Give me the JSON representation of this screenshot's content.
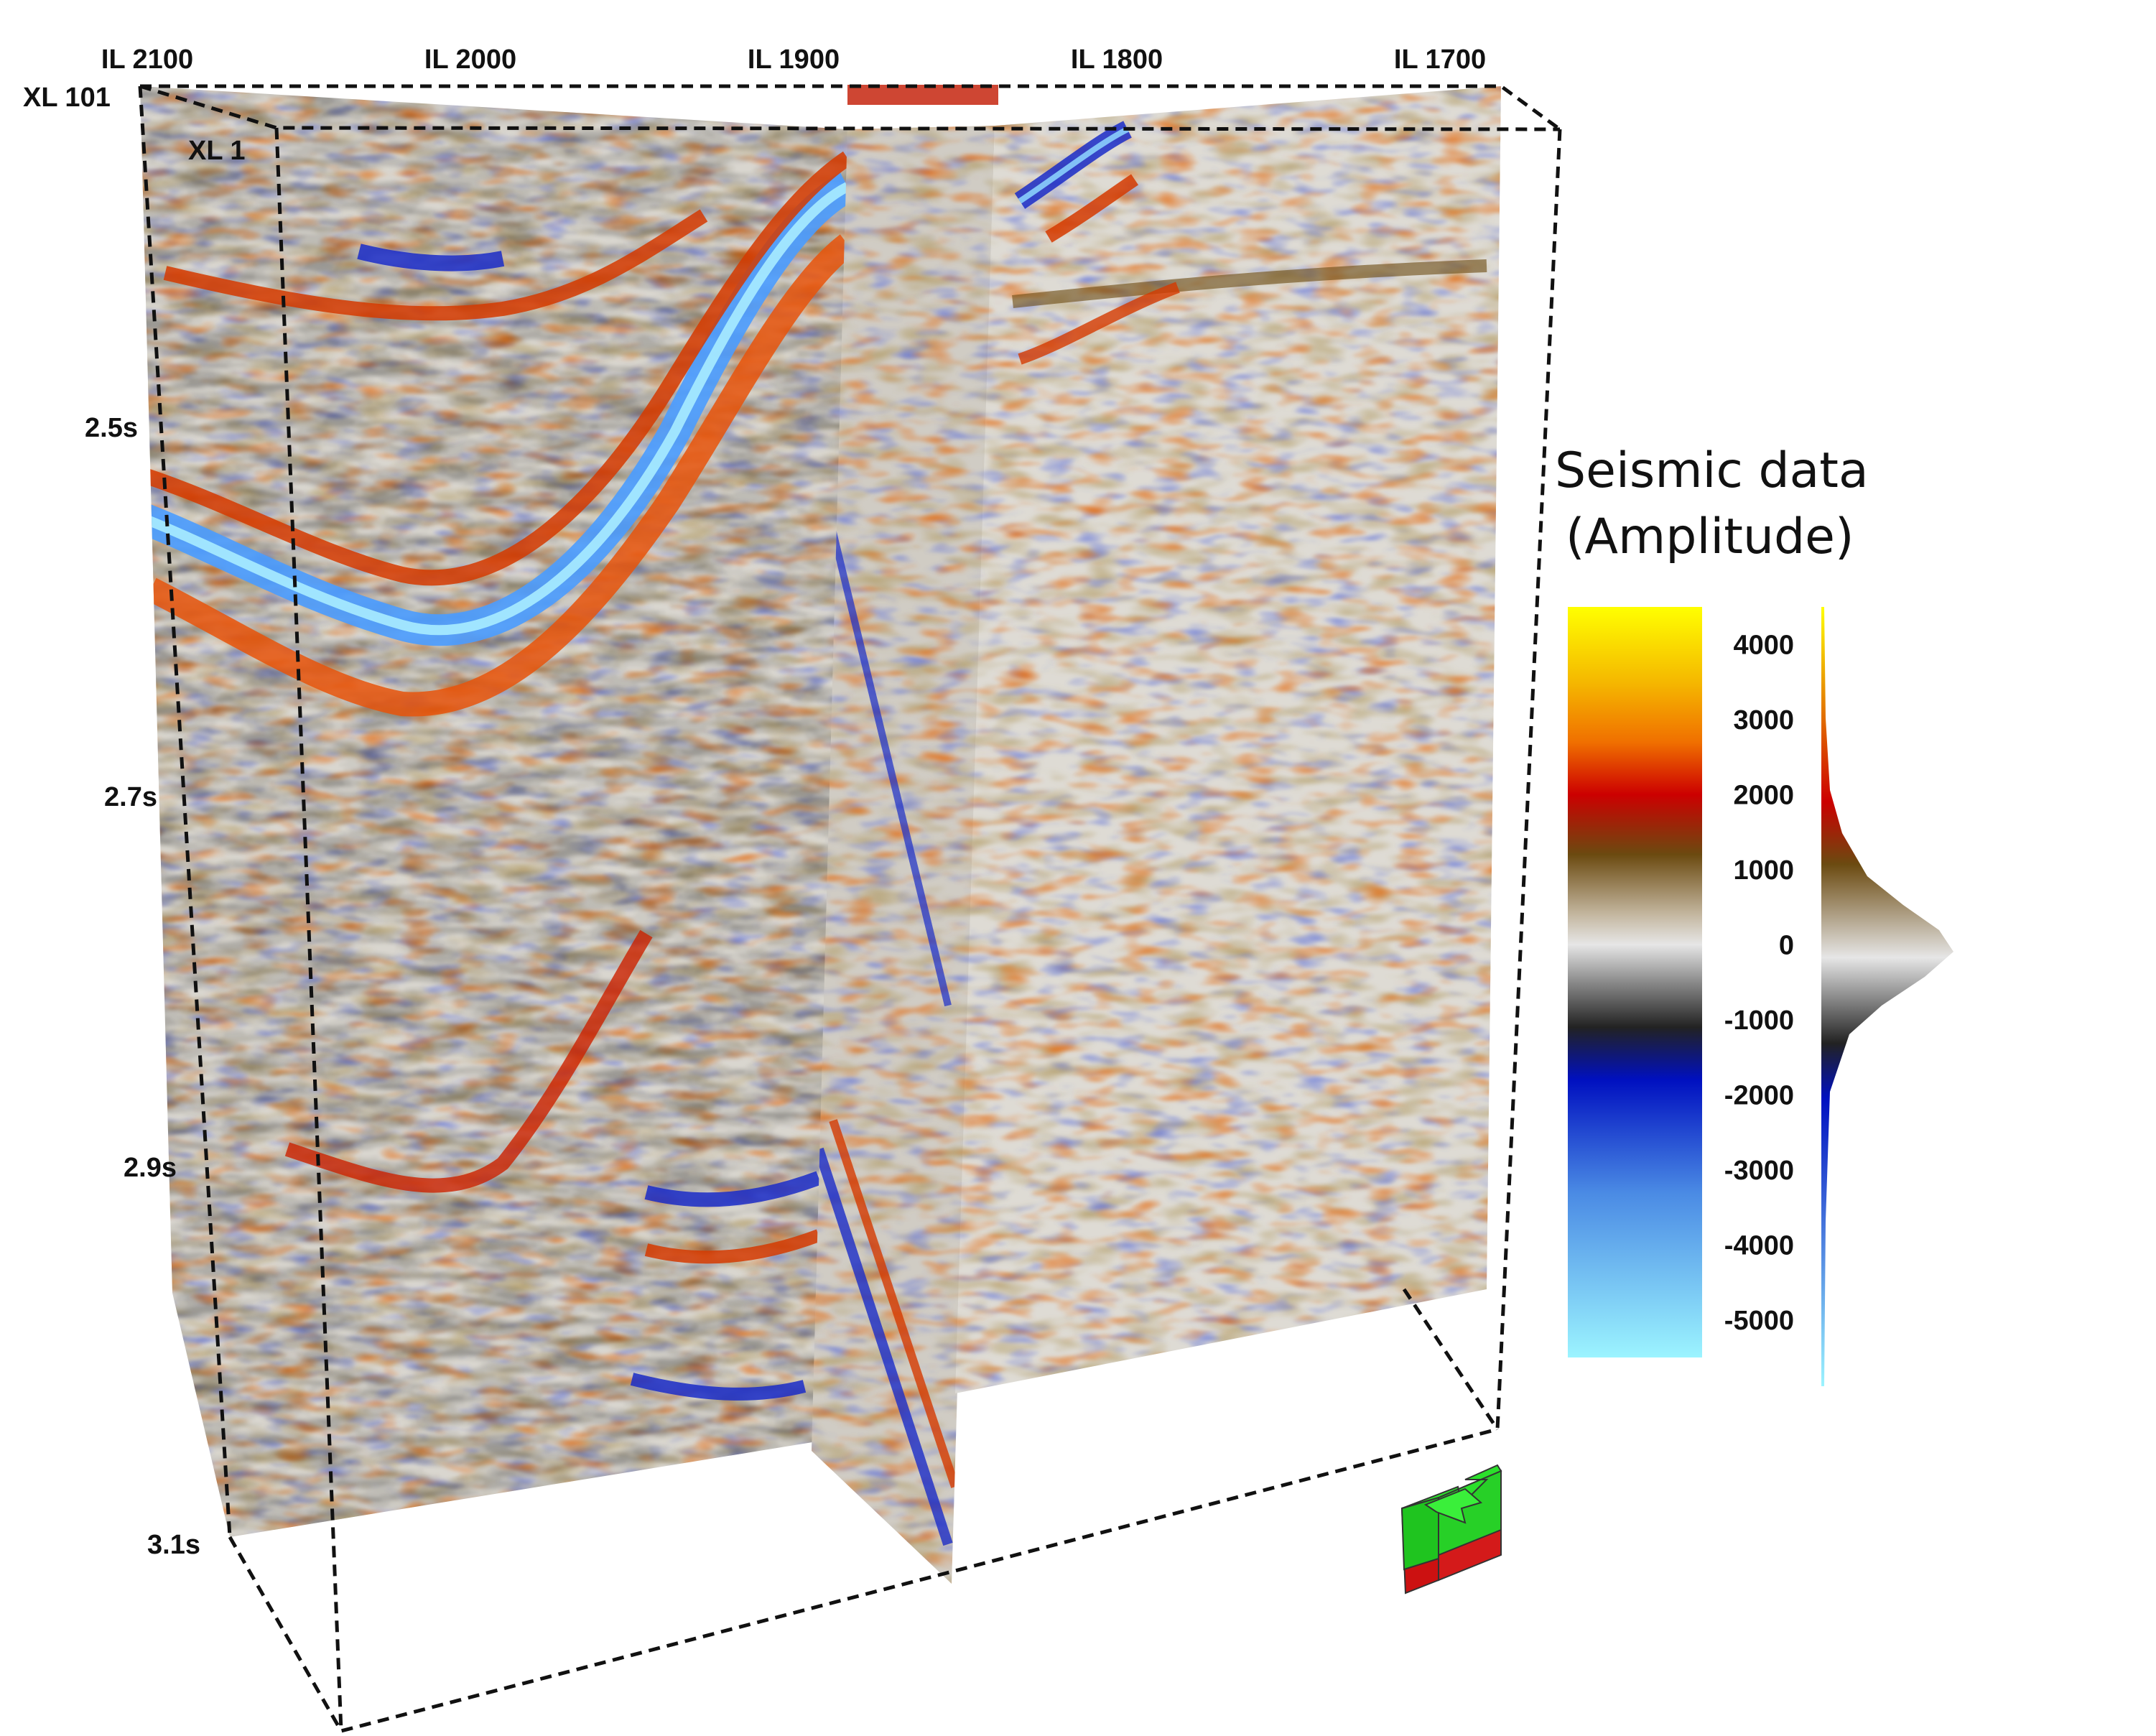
{
  "inline_labels": [
    "IL 2100",
    "IL 2000",
    "IL 1900",
    "IL 1800",
    "IL 1700"
  ],
  "crossline_labels": [
    "XL 101",
    "XL 1"
  ],
  "time_labels": [
    "2.5s",
    "2.7s",
    "2.9s",
    "3.1s"
  ],
  "legend": {
    "title_line1": "Seismic data",
    "title_line2": "(Amplitude)",
    "ticks": [
      "4000",
      "3000",
      "2000",
      "1000",
      "0",
      "-1000",
      "-2000",
      "-3000",
      "-4000",
      "-5000"
    ],
    "tick_values": [
      4000,
      3000,
      2000,
      1000,
      0,
      -1000,
      -2000,
      -3000,
      -4000,
      -5000
    ],
    "range": [
      -5500,
      4500
    ],
    "colors": [
      "#ffff00",
      "#f2a100",
      "#d63000",
      "#c00000",
      "#6b4a10",
      "#c8c8c8",
      "#3a3a3a",
      "#0010c0",
      "#3c78e0",
      "#90f0ff"
    ]
  },
  "orientation_icon": "orientation-cube-icon"
}
